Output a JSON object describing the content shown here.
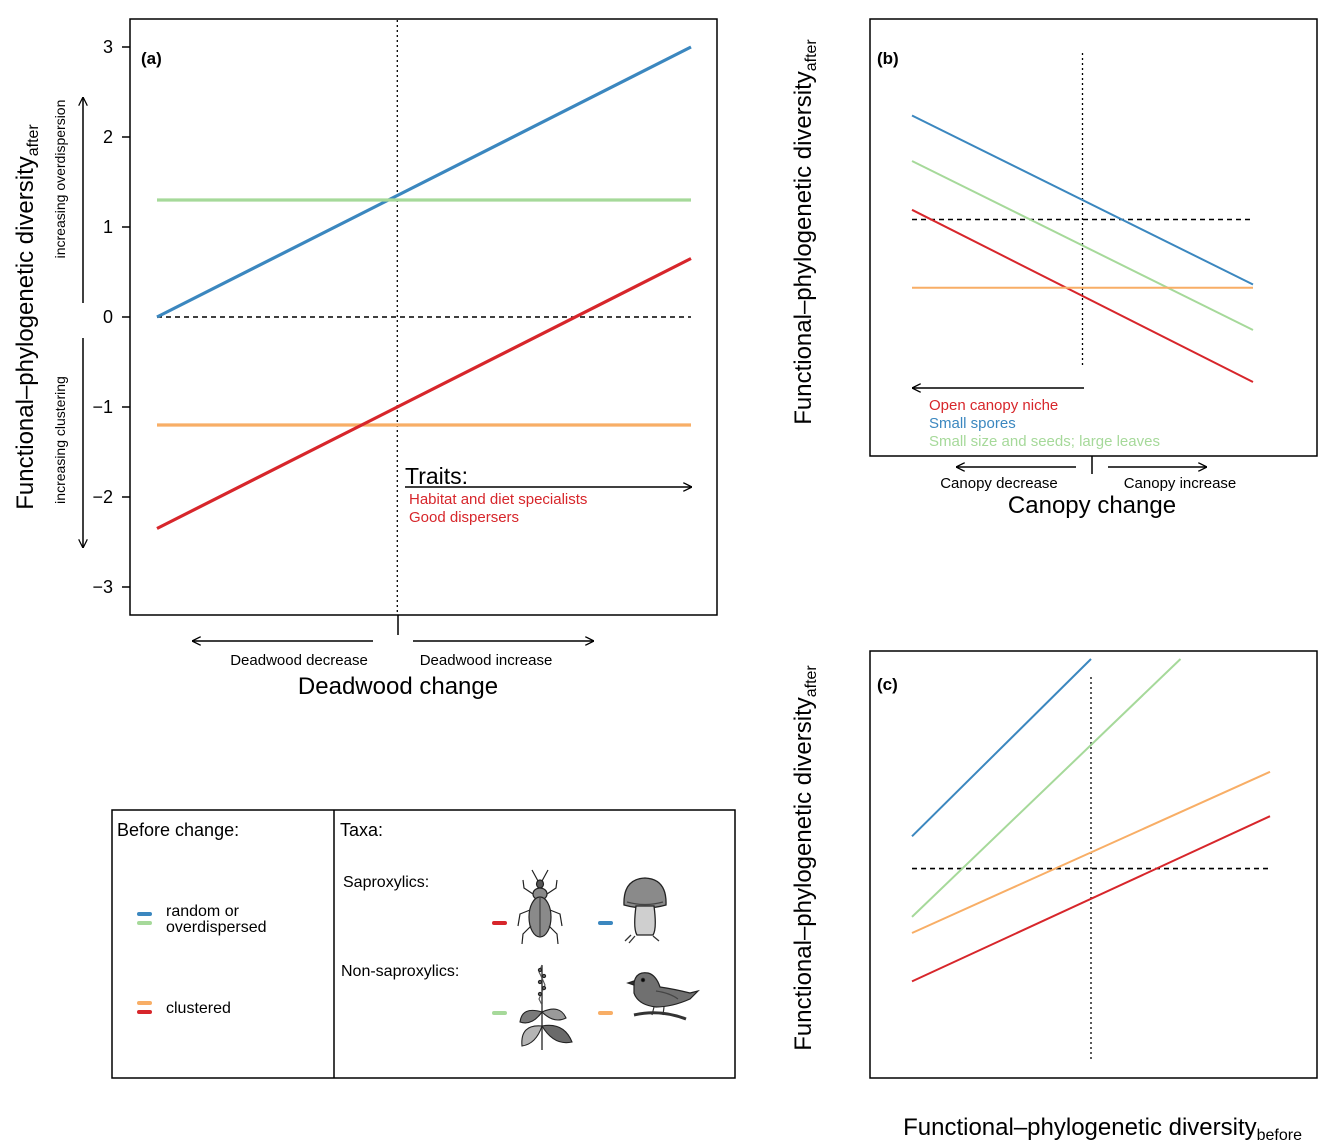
{
  "colors": {
    "blue": "#3b87bf",
    "green": "#a6d99a",
    "orange": "#f8ae66",
    "red": "#d7262b",
    "black": "#000000"
  },
  "chart_data": [
    {
      "panel": "(a)",
      "type": "line",
      "xlabel": "Deadwood change",
      "ylabel_main": "Functional–phylogenetic diversity",
      "ylabel_sub": "after",
      "x_ticks": [],
      "y_ticks": [
        "−3",
        "−2",
        "−1",
        "0",
        "1",
        "2",
        "3"
      ],
      "y_tick_values": [
        -3,
        -2,
        -1,
        0,
        1,
        2,
        3
      ],
      "xlim": [
        0,
        100
      ],
      "ylim": [
        -3.3,
        3.3
      ],
      "x_arrow_left": "Deadwood decrease",
      "x_arrow_right": "Deadwood increase",
      "y_arrow_up": "increasing overdispersion",
      "y_arrow_down": "increasing clustering",
      "traits_title": "Traits:",
      "traits": [
        "Habitat and diet specialists",
        "Good dispersers"
      ],
      "series": [
        {
          "color": "blue",
          "x": [
            0,
            100
          ],
          "y": [
            0,
            3.0
          ]
        },
        {
          "color": "green",
          "x": [
            0,
            100
          ],
          "y": [
            1.3,
            1.3
          ]
        },
        {
          "color": "orange",
          "x": [
            0,
            100
          ],
          "y": [
            -1.2,
            -1.2
          ]
        },
        {
          "color": "red",
          "x": [
            0,
            100
          ],
          "y": [
            -2.35,
            0.65
          ]
        }
      ],
      "hline_dashed": 0,
      "vline_dotted": 45
    },
    {
      "panel": "(b)",
      "type": "line",
      "xlabel": "Canopy change",
      "ylabel_main": "Functional–phylogenetic diversity",
      "ylabel_sub": "after",
      "x_arrow_left": "Canopy decrease",
      "x_arrow_right": "Canopy increase",
      "traits": [
        "Open canopy niche",
        "Small spores",
        "Small size and seeds; large leaves"
      ],
      "trait_colors": [
        "red",
        "blue",
        "green"
      ],
      "xlim": [
        0,
        100
      ],
      "ylim": [
        0,
        100
      ],
      "series": [
        {
          "color": "blue",
          "x": [
            0,
            100
          ],
          "y": [
            86,
            34
          ]
        },
        {
          "color": "green",
          "x": [
            0,
            100
          ],
          "y": [
            72,
            20
          ]
        },
        {
          "color": "red",
          "x": [
            0,
            100
          ],
          "y": [
            57,
            4
          ]
        },
        {
          "color": "orange",
          "x": [
            0,
            100
          ],
          "y": [
            33,
            33
          ]
        }
      ],
      "hline_dashed": 54,
      "vline_dotted": 50
    },
    {
      "panel": "(c)",
      "type": "line",
      "xlabel": "Functional–phylogenetic diversity",
      "xlabel_sub": "before",
      "ylabel_main": "Functional–phylogenetic diversity",
      "ylabel_sub": "after",
      "xlim": [
        0,
        100
      ],
      "ylim": [
        0,
        100
      ],
      "series": [
        {
          "color": "blue",
          "x": [
            0,
            50
          ],
          "y": [
            56,
            100
          ]
        },
        {
          "color": "green",
          "x": [
            0,
            75
          ],
          "y": [
            36,
            100
          ]
        },
        {
          "color": "orange",
          "x": [
            0,
            100
          ],
          "y": [
            32,
            72
          ]
        },
        {
          "color": "red",
          "x": [
            0,
            100
          ],
          "y": [
            20,
            61
          ]
        }
      ],
      "hline_dashed": 48,
      "vline_dotted": 50
    }
  ],
  "legend": {
    "before_title": "Before change:",
    "before_items": [
      {
        "label": "random or",
        "label2": "overdispersed",
        "colors": [
          "blue",
          "green"
        ]
      },
      {
        "label": "clustered",
        "colors": [
          "orange",
          "red"
        ]
      }
    ],
    "taxa_title": "Taxa:",
    "saproxylics": "Saproxylics:",
    "non_saproxylics": "Non-saproxylics:",
    "taxa_icons": [
      {
        "group": "saproxylics",
        "color": "red",
        "icon": "beetle-icon"
      },
      {
        "group": "saproxylics",
        "color": "blue",
        "icon": "mushroom-icon"
      },
      {
        "group": "non-saproxylics",
        "color": "green",
        "icon": "plant-icon"
      },
      {
        "group": "non-saproxylics",
        "color": "orange",
        "icon": "bird-icon"
      }
    ]
  }
}
